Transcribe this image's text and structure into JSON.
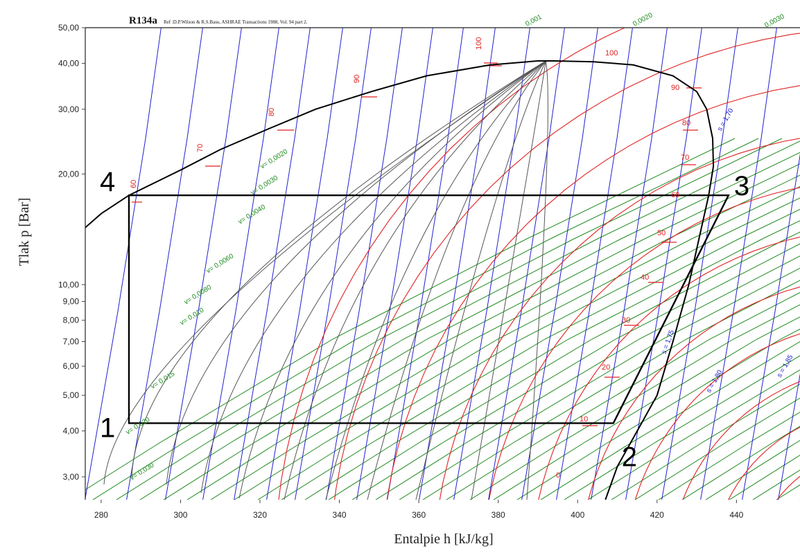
{
  "chart_data": {
    "type": "line",
    "title": "R134a",
    "reference": "Ref :D.P.Wilson & R.S.Basu, ASHRAE Transactions 1988, Vol. 94 part 2.",
    "xlabel": "Entalpie h [kJ/kg]",
    "ylabel": "Tlak p [Bar]",
    "xlim": [
      276,
      456
    ],
    "ylim": [
      2.6,
      50
    ],
    "yscale": "log",
    "x_ticks": [
      "280",
      "300",
      "320",
      "340",
      "360",
      "380",
      "400",
      "420",
      "440"
    ],
    "y_ticks": [
      "3,00",
      "4,00",
      "5,00",
      "6,00",
      "7,00",
      "8,00",
      "9,00",
      "10,00",
      "20,00",
      "30,00",
      "40,00",
      "50,00"
    ],
    "colors": {
      "saturation": "#000000",
      "cycle": "#000000",
      "quality": "#555555",
      "isotherm": "#e02020",
      "isochore": "#1e8a1e",
      "isentrope": "#2020d0"
    },
    "cycle_points": [
      {
        "label": "1",
        "h": 287,
        "p": 4.2
      },
      {
        "label": "2",
        "h": 409,
        "p": 4.2
      },
      {
        "label": "3",
        "h": 438,
        "p": 17.5
      },
      {
        "label": "4",
        "h": 287,
        "p": 17.5
      }
    ],
    "saturation_liquid": [
      [
        276,
        14.3
      ],
      [
        280,
        15.6
      ],
      [
        287,
        17.5
      ],
      [
        300,
        20.5
      ],
      [
        310,
        23.3
      ],
      [
        322,
        26.5
      ],
      [
        334,
        30.0
      ],
      [
        348,
        33.5
      ],
      [
        362,
        37.0
      ],
      [
        378,
        39.6
      ],
      [
        390,
        40.6
      ]
    ],
    "saturation_vapor": [
      [
        394,
        40.6
      ],
      [
        404,
        40.4
      ],
      [
        414,
        39.6
      ],
      [
        424,
        37.0
      ],
      [
        430,
        33.5
      ],
      [
        432.5,
        30.0
      ],
      [
        434,
        25.0
      ],
      [
        434.2,
        21.0
      ],
      [
        433,
        17.5
      ],
      [
        431,
        14.0
      ],
      [
        428,
        10.0
      ],
      [
        424,
        7.0
      ],
      [
        420,
        5.0
      ],
      [
        415,
        4.0
      ],
      [
        410,
        3.2
      ],
      [
        407,
        2.6
      ]
    ],
    "isotherm_labels": [
      "0",
      "10",
      "20",
      "30",
      "40",
      "50",
      "60",
      "70",
      "80",
      "90",
      "100"
    ],
    "sat_temp_labels": [
      "60",
      "70",
      "80",
      "90",
      "100"
    ],
    "isochore_labels": [
      "0,001",
      "0,0020",
      "0,0030",
      "v= 0,0020",
      "v= 0,0030",
      "v= 0,0040",
      "v= 0,0060",
      "v= 0,0080",
      "v= 0,010",
      "v= 0,015",
      "v= 0,020",
      "v= 0,030"
    ],
    "isentrope_labels": [
      "s = 1,70",
      "s = 1,75",
      "s = 1,80",
      "s = 1,85"
    ]
  }
}
